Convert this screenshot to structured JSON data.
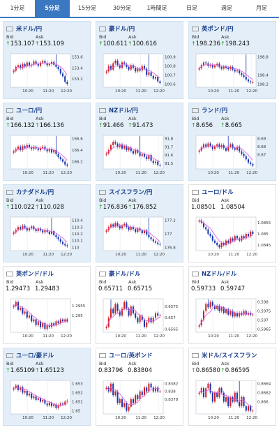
{
  "tabs": [
    "1分足",
    "5分足",
    "15分足",
    "30分足",
    "1時間足",
    "日足",
    "週足",
    "月足"
  ],
  "active_tab": 1,
  "labels": {
    "bid": "Bid",
    "ask": "Ask"
  },
  "cards": [
    {
      "pair": "米ドル/円",
      "bid": "153.107",
      "ask": "153.109",
      "up": true,
      "flag": "us",
      "hl": true,
      "ticks": [
        "153.6",
        "153.4",
        "153.2"
      ],
      "times": [
        "10:20",
        "11:20",
        "12:20"
      ],
      "closes": [
        153.35,
        153.42,
        153.45,
        153.4,
        153.47,
        153.43,
        153.5,
        153.44,
        153.46,
        153.52,
        153.48,
        153.44,
        153.5,
        153.53,
        153.49,
        153.45,
        153.47,
        153.51,
        153.46,
        153.42,
        153.38,
        153.3,
        153.25,
        153.15,
        153.11
      ],
      "spike": 19
    },
    {
      "pair": "豪ドル/円",
      "bid": "100.611",
      "ask": "100.616",
      "up": true,
      "flag": "au",
      "hl": false,
      "ticks": [
        "100.9",
        "100.8",
        "100.7",
        "100.6"
      ],
      "times": [
        "10:20",
        "11:20",
        "12:20"
      ],
      "closes": [
        100.74,
        100.8,
        100.76,
        100.83,
        100.86,
        100.81,
        100.78,
        100.84,
        100.82,
        100.79,
        100.76,
        100.81,
        100.78,
        100.74,
        100.77,
        100.75,
        100.8,
        100.77,
        100.7,
        100.73,
        100.69,
        100.66,
        100.68,
        100.63,
        100.61
      ],
      "spike": 19
    },
    {
      "pair": "英ポンド/円",
      "bid": "198.236",
      "ask": "198.243",
      "up": true,
      "flag": "gb",
      "hl": true,
      "ticks": [
        "198.8",
        "198.4",
        "198.2"
      ],
      "times": [
        "10:20",
        "11:20",
        "12:20"
      ],
      "closes": [
        198.55,
        198.62,
        198.68,
        198.66,
        198.6,
        198.63,
        198.57,
        198.61,
        198.65,
        198.58,
        198.54,
        198.59,
        198.56,
        198.53,
        198.58,
        198.52,
        198.48,
        198.5,
        198.44,
        198.4,
        198.36,
        198.3,
        198.26,
        198.24,
        198.24
      ],
      "spike": 21
    },
    {
      "pair": "ユーロ/円",
      "bid": "166.132",
      "ask": "166.136",
      "up": true,
      "flag": "eu",
      "hl": true,
      "ticks": [
        "166.6",
        "166.4",
        "166.2"
      ],
      "times": [
        "10:20",
        "11:20",
        "12:20"
      ],
      "closes": [
        166.38,
        166.42,
        166.46,
        166.4,
        166.47,
        166.44,
        166.49,
        166.45,
        166.42,
        166.46,
        166.43,
        166.4,
        166.44,
        166.46,
        166.41,
        166.38,
        166.42,
        166.36,
        166.4,
        166.33,
        166.28,
        166.24,
        166.2,
        166.15,
        166.13
      ],
      "spike": 19
    },
    {
      "pair": "NZドル/円",
      "bid": "91.466",
      "ask": "91.473",
      "up": true,
      "flag": "nz",
      "hl": true,
      "ticks": [
        "91.8",
        "91.7",
        "91.6",
        "91.5"
      ],
      "times": [
        "10:20",
        "11:20",
        "12:20"
      ],
      "closes": [
        91.62,
        91.66,
        91.72,
        91.76,
        91.74,
        91.7,
        91.73,
        91.68,
        91.71,
        91.66,
        91.69,
        91.65,
        91.62,
        91.66,
        91.63,
        91.59,
        91.61,
        91.58,
        91.55,
        91.6,
        91.53,
        91.5,
        91.52,
        91.48,
        91.47
      ],
      "spike": 15
    },
    {
      "pair": "ランド/円",
      "bid": "8.656",
      "ask": "8.665",
      "up": true,
      "flag": "za",
      "hl": false,
      "ticks": [
        "8.69",
        "8.68",
        "8.67"
      ],
      "times": [
        "10:20",
        "11:20",
        "12:20"
      ],
      "closes": [
        8.675,
        8.679,
        8.683,
        8.68,
        8.684,
        8.681,
        8.677,
        8.68,
        8.683,
        8.679,
        8.682,
        8.678,
        8.675,
        8.68,
        8.683,
        8.678,
        8.676,
        8.68,
        8.674,
        8.671,
        8.668,
        8.664,
        8.66,
        8.658,
        8.656
      ],
      "spike": 13
    },
    {
      "pair": "カナダドル/円",
      "bid": "110.022",
      "ask": "110.028",
      "up": true,
      "flag": "ca",
      "hl": true,
      "ticks": [
        "110.4",
        "110.3",
        "110.2",
        "110.1",
        "110"
      ],
      "times": [
        "10:20",
        "11:20",
        "12:20"
      ],
      "closes": [
        110.22,
        110.26,
        110.3,
        110.27,
        110.32,
        110.29,
        110.25,
        110.28,
        110.31,
        110.27,
        110.24,
        110.28,
        110.25,
        110.22,
        110.26,
        110.23,
        110.2,
        110.24,
        110.18,
        110.15,
        110.12,
        110.08,
        110.05,
        110.03,
        110.02
      ],
      "spike": 17
    },
    {
      "pair": "スイスフラン/円",
      "bid": "176.836",
      "ask": "176.852",
      "up": true,
      "flag": "ch",
      "hl": false,
      "ticks": [
        "177.2",
        "177",
        "176.8"
      ],
      "times": [
        "10:20",
        "11:20",
        "12:20"
      ],
      "closes": [
        177.05,
        177.1,
        177.14,
        177.11,
        177.16,
        177.12,
        177.08,
        177.12,
        177.15,
        177.1,
        177.06,
        177.1,
        177.07,
        177.03,
        177.08,
        177.05,
        177.01,
        177.05,
        176.99,
        176.95,
        176.92,
        176.89,
        176.87,
        176.85,
        176.84
      ],
      "spike": 19
    },
    {
      "pair": "ユーロ/ドル",
      "bid": "1.08501",
      "ask": "1.08504",
      "up": false,
      "flag": "eu",
      "hl": false,
      "ticks": [
        "1.0855",
        "1.085",
        "1.0845"
      ],
      "times": [
        "10:20",
        "11:20",
        "12:20"
      ],
      "closes": [
        1.0856,
        1.0855,
        1.0853,
        1.0852,
        1.085,
        1.0849,
        1.0847,
        1.0846,
        1.0845,
        1.0844,
        1.0846,
        1.0845,
        1.0847,
        1.0846,
        1.0848,
        1.0847,
        1.0849,
        1.0848,
        1.0847,
        1.0849,
        1.0848,
        1.085,
        1.0849,
        1.0851,
        1.085
      ],
      "spike": -1
    },
    {
      "pair": "英ポンド/ドル",
      "bid": "1.29473",
      "ask": "1.29483",
      "up": false,
      "flag": "gb",
      "hl": false,
      "ticks": [
        "1.2955",
        "1.295"
      ],
      "times": [
        "10:20",
        "11:20",
        "12:20"
      ],
      "closes": [
        1.2955,
        1.2957,
        1.2953,
        1.2954,
        1.2951,
        1.2952,
        1.2949,
        1.295,
        1.2947,
        1.2948,
        1.2945,
        1.2947,
        1.2944,
        1.2946,
        1.2943,
        1.2945,
        1.2944,
        1.2946,
        1.2945,
        1.2947,
        1.2946,
        1.2948,
        1.2947,
        1.2948,
        1.2947
      ],
      "spike": -1
    },
    {
      "pair": "豪ドル/ドル",
      "bid": "0.65711",
      "ask": "0.65715",
      "up": false,
      "flag": "au",
      "hl": false,
      "ticks": [
        "0.6575",
        "0.657",
        "0.6565"
      ],
      "times": [
        "10:20",
        "11:20",
        "12:20"
      ],
      "closes": [
        0.6566,
        0.657,
        0.6574,
        0.6572,
        0.6576,
        0.6573,
        0.6571,
        0.6574,
        0.6577,
        0.6574,
        0.6571,
        0.6575,
        0.6572,
        0.657,
        0.6568,
        0.6571,
        0.6569,
        0.6566,
        0.6568,
        0.657,
        0.6568,
        0.657,
        0.6572,
        0.6571,
        0.6571
      ],
      "spike": 2
    },
    {
      "pair": "NZドル/ドル",
      "bid": "0.59733",
      "ask": "0.59747",
      "up": false,
      "flag": "nz",
      "hl": false,
      "ticks": [
        "0.598",
        "0.5975",
        "0.597",
        "0.5965"
      ],
      "times": [
        "10:20",
        "11:20",
        "12:20"
      ],
      "closes": [
        0.5967,
        0.597,
        0.5975,
        0.5979,
        0.5977,
        0.598,
        0.5978,
        0.5976,
        0.5978,
        0.5975,
        0.5977,
        0.5974,
        0.5976,
        0.5973,
        0.5975,
        0.5972,
        0.5974,
        0.5972,
        0.5974,
        0.5973,
        0.5975,
        0.5973,
        0.5974,
        0.5973,
        0.5973
      ],
      "spike": 4
    },
    {
      "pair": "ユーロ/豪ドル",
      "bid": "1.65109",
      "ask": "1.65123",
      "up": true,
      "flag": "eu",
      "hl": false,
      "ticks": [
        "1.653",
        "1.652",
        "1.651",
        "1.65"
      ],
      "times": [
        "10:20",
        "11:20",
        "12:20"
      ],
      "closes": [
        1.6525,
        1.6528,
        1.6523,
        1.6526,
        1.652,
        1.6522,
        1.6517,
        1.6519,
        1.6514,
        1.6516,
        1.6512,
        1.6514,
        1.651,
        1.6512,
        1.6508,
        1.6506,
        1.6509,
        1.6505,
        1.6507,
        1.6503,
        1.6506,
        1.6508,
        1.6507,
        1.651,
        1.6511
      ],
      "spike": -1
    },
    {
      "pair": "ユーロ/英ポンド",
      "bid": "0.83796",
      "ask": "0.83804",
      "up": false,
      "flag": "eu",
      "hl": false,
      "ticks": [
        "0.8382",
        "0.838",
        "0.8378"
      ],
      "times": [
        "10:20",
        "11:20",
        "12:20"
      ],
      "closes": [
        0.8381,
        0.838,
        0.8382,
        0.8379,
        0.838,
        0.8377,
        0.8378,
        0.8376,
        0.8377,
        0.8375,
        0.8376,
        0.8378,
        0.8377,
        0.8379,
        0.8378,
        0.838,
        0.8379,
        0.8381,
        0.838,
        0.8382,
        0.8381,
        0.838,
        0.8381,
        0.838,
        0.838
      ],
      "spike": -1
    },
    {
      "pair": "米ドル/スイスフラン",
      "bid": "0.86580",
      "ask": "0.86595",
      "up": true,
      "flag": "us",
      "hl": false,
      "ticks": [
        "0.8664",
        "0.8662",
        "0.866"
      ],
      "times": [
        "10:20",
        "11:20",
        "12:20"
      ],
      "closes": [
        0.8662,
        0.8663,
        0.8661,
        0.8663,
        0.8664,
        0.8662,
        0.866,
        0.8662,
        0.8661,
        0.8663,
        0.8662,
        0.866,
        0.8661,
        0.8659,
        0.8661,
        0.866,
        0.8662,
        0.866,
        0.8659,
        0.8661,
        0.8659,
        0.8658,
        0.8659,
        0.8658,
        0.8658
      ],
      "spike": 18
    }
  ],
  "colors": {
    "up": "#d62020",
    "down": "#1838b0",
    "ma": "#e060e0",
    "arrow": "#2a9a2a",
    "title": "#1a3e8c",
    "tab_active": "#3a78c2"
  }
}
